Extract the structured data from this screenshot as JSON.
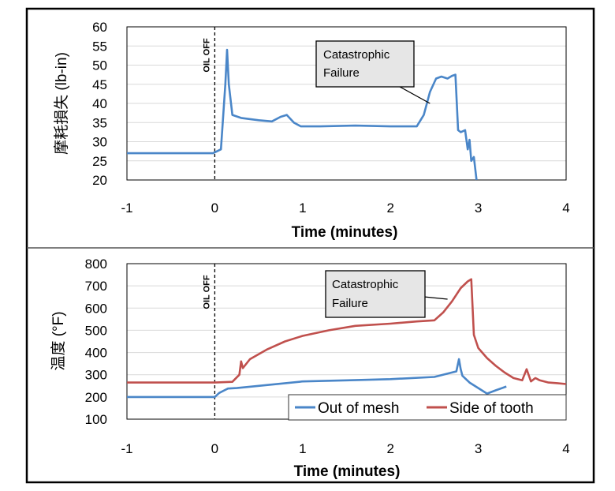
{
  "chart_data": [
    {
      "type": "line",
      "ylabel": "摩耗損失 (lb-in)",
      "xlabel": "Time (minutes)",
      "xlim": [
        -1,
        4
      ],
      "ylim": [
        20,
        60
      ],
      "xticks": [
        -1,
        0,
        1,
        2,
        3,
        4
      ],
      "yticks": [
        20,
        25,
        30,
        35,
        40,
        45,
        50,
        55,
        60
      ],
      "grid": "horizontal",
      "vline": {
        "x": 0,
        "label": "OIL OFF"
      },
      "annotation": {
        "text": [
          "Catastrophic",
          "Failure"
        ],
        "x": 2.45,
        "y": 40
      },
      "series": [
        {
          "color": "#4a86c8",
          "x": [
            -1,
            -0.5,
            -0.02,
            0.07,
            0.12,
            0.14,
            0.16,
            0.2,
            0.3,
            0.5,
            0.65,
            0.75,
            0.82,
            0.9,
            0.98,
            1.2,
            1.6,
            2.0,
            2.3,
            2.38,
            2.45,
            2.52,
            2.58,
            2.65,
            2.7,
            2.74,
            2.77,
            2.8,
            2.85,
            2.88,
            2.9,
            2.92,
            2.95,
            2.98
          ],
          "y": [
            27,
            27,
            27,
            28,
            45,
            54,
            45,
            37,
            36.2,
            35.6,
            35.3,
            36.5,
            37,
            35,
            34,
            34,
            34.2,
            34,
            34,
            37,
            43,
            46.5,
            47,
            46.5,
            47.2,
            47.5,
            33,
            32.5,
            33,
            28,
            30.5,
            25,
            26,
            20
          ]
        }
      ]
    },
    {
      "type": "line",
      "ylabel": "温度 (°F)",
      "xlabel": "Time (minutes)",
      "xlim": [
        -1,
        4
      ],
      "ylim": [
        100,
        800
      ],
      "xticks": [
        -1,
        0,
        1,
        2,
        3,
        4
      ],
      "yticks": [
        100,
        200,
        300,
        400,
        500,
        600,
        700,
        800
      ],
      "grid": "horizontal",
      "vline": {
        "x": 0,
        "label": "OIL OFF"
      },
      "annotation": {
        "text": [
          "Catastrophic",
          "Failure"
        ],
        "x": 2.65,
        "y": 640
      },
      "legend": {
        "placement": "bottom-right"
      },
      "series": [
        {
          "name": "Out of mesh",
          "color": "#4a86c8",
          "x": [
            -1,
            -0.5,
            0,
            0.05,
            0.1,
            0.15,
            0.25,
            0.5,
            1.0,
            1.5,
            2.0,
            2.5,
            2.7,
            2.75,
            2.78,
            2.8,
            2.82,
            2.9,
            3.0,
            3.1,
            3.2,
            3.32
          ],
          "y": [
            200,
            200,
            200,
            218,
            228,
            238,
            240,
            250,
            270,
            275,
            280,
            290,
            310,
            315,
            370,
            325,
            295,
            265,
            240,
            215,
            230,
            247
          ]
        },
        {
          "name": "Side of tooth",
          "color": "#c0504d",
          "x": [
            -1,
            -0.5,
            0,
            0.2,
            0.28,
            0.3,
            0.32,
            0.4,
            0.6,
            0.8,
            1.0,
            1.3,
            1.6,
            2.0,
            2.3,
            2.5,
            2.6,
            2.7,
            2.8,
            2.88,
            2.92,
            2.95,
            3.0,
            3.1,
            3.2,
            3.3,
            3.4,
            3.5,
            3.55,
            3.6,
            3.65,
            3.7,
            3.8,
            3.9,
            4.0
          ],
          "y": [
            265,
            265,
            265,
            268,
            300,
            360,
            330,
            370,
            415,
            450,
            475,
            500,
            520,
            530,
            540,
            545,
            580,
            630,
            690,
            720,
            730,
            480,
            420,
            375,
            340,
            310,
            285,
            275,
            325,
            270,
            285,
            275,
            265,
            262,
            258
          ]
        }
      ]
    }
  ]
}
